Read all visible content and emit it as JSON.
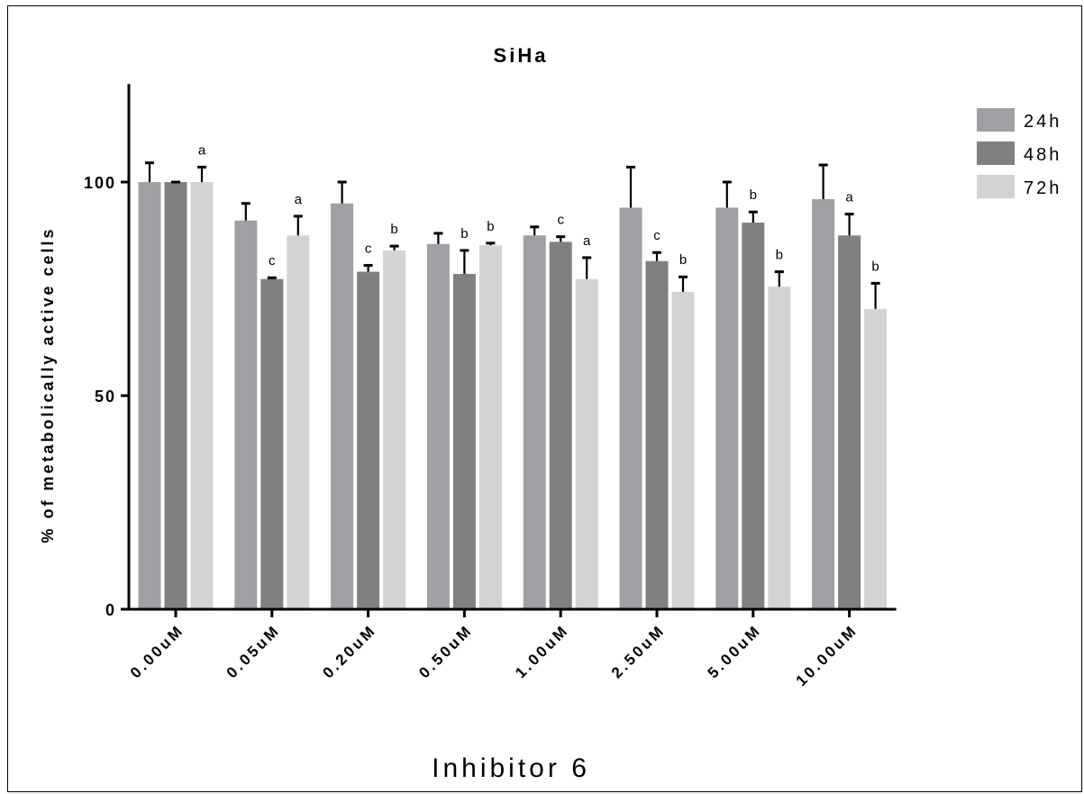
{
  "chart_data": {
    "type": "bar",
    "title": "SiHa",
    "xlabel": "Inhibitor 6",
    "ylabel": "% of metabolically active cells",
    "ylim": [
      0,
      120
    ],
    "yticks": [
      0,
      50,
      100
    ],
    "grid": false,
    "legend_position": "right",
    "categories": [
      "0.00uM",
      "0.05uM",
      "0.20uM",
      "0.50uM",
      "1.00uM",
      "2.50uM",
      "5.00uM",
      "10.00uM"
    ],
    "series": [
      {
        "name": "24h",
        "color": "#a0a0a4",
        "values": [
          100,
          91,
          95,
          85.5,
          87.5,
          94,
          94,
          96
        ],
        "errors": [
          4.5,
          4,
          5,
          2.5,
          2,
          9.5,
          6,
          8
        ],
        "labels": [
          "",
          "",
          "",
          "",
          "",
          "",
          "",
          ""
        ]
      },
      {
        "name": "48h",
        "color": "#808080",
        "values": [
          100,
          77.3,
          79,
          78.5,
          86,
          81.5,
          90.5,
          87.5
        ],
        "errors": [
          0,
          0.3,
          1.5,
          5.5,
          1.2,
          2,
          2.5,
          5
        ],
        "labels": [
          "",
          "c",
          "c",
          "b",
          "c",
          "c",
          "b",
          "a"
        ]
      },
      {
        "name": "72h",
        "color": "#d3d3d3",
        "values": [
          100,
          87.5,
          84,
          85.2,
          77.3,
          74.3,
          75.5,
          70.3
        ],
        "errors": [
          3.5,
          4.5,
          1,
          0.5,
          5,
          3.5,
          3.5,
          6
        ],
        "labels": [
          "a",
          "a",
          "b",
          "b",
          "a",
          "b",
          "b",
          "b"
        ]
      }
    ]
  }
}
